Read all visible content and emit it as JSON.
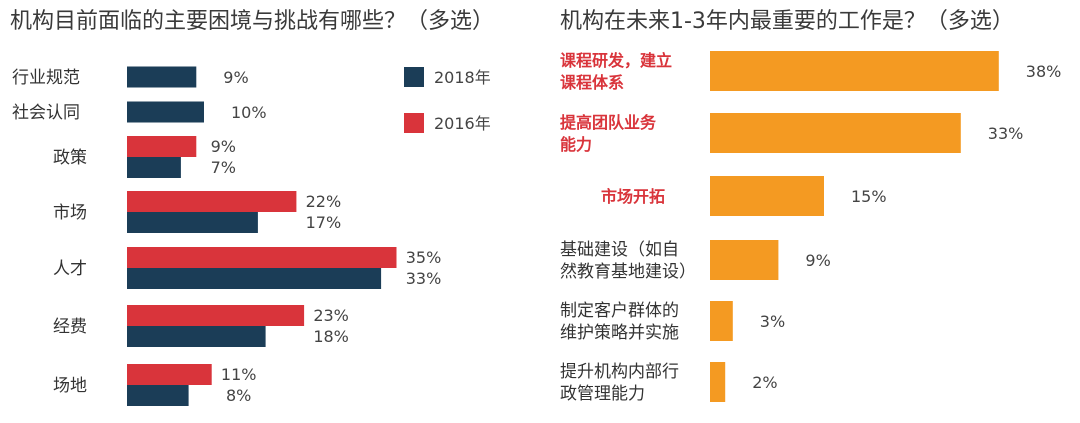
{
  "colors": {
    "y2018": "#1b3d57",
    "y2016": "#d9343b",
    "orange": "#f49a22",
    "highlight_text": "#d9343b"
  },
  "chart_data": [
    {
      "type": "bar",
      "orientation": "horizontal",
      "title": "机构目前面临的主要困境与挑战有哪些？（多选）",
      "categories": [
        "行业规范",
        "社会认同",
        "政策",
        "市场",
        "人才",
        "经费",
        "场地"
      ],
      "series": [
        {
          "name": "2016年",
          "values": [
            null,
            null,
            9,
            22,
            35,
            23,
            11
          ],
          "labels": [
            "",
            "",
            "9%",
            "22%",
            "35%",
            "23%",
            "11%"
          ]
        },
        {
          "name": "2018年",
          "values": [
            9,
            10,
            7,
            17,
            33,
            18,
            8
          ],
          "labels": [
            "9%",
            "10%",
            "7%",
            "17%",
            "33%",
            "18%",
            "8%"
          ]
        }
      ],
      "legend": {
        "position": "top-right",
        "entries": [
          "2018年",
          "2016年"
        ]
      },
      "grid": false
    },
    {
      "type": "bar",
      "orientation": "horizontal",
      "title": "机构在未来1-3年内最重要的工作是？（多选）",
      "categories": [
        [
          "课程研发，建立",
          "课程体系"
        ],
        [
          "提高团队业务",
          "能力"
        ],
        [
          "市场开拓"
        ],
        [
          "基础建设（如自",
          "然教育基地建设）"
        ],
        [
          "制定客户群体的",
          "维护策略并实施"
        ],
        [
          "提升机构内部行",
          "政管理能力"
        ]
      ],
      "highlighted": [
        true,
        true,
        true,
        false,
        false,
        false
      ],
      "values": [
        38,
        33,
        15,
        9,
        3,
        2
      ],
      "labels": [
        "38%",
        "33%",
        "15%",
        "9%",
        "3%",
        "2%"
      ],
      "grid": false
    }
  ]
}
